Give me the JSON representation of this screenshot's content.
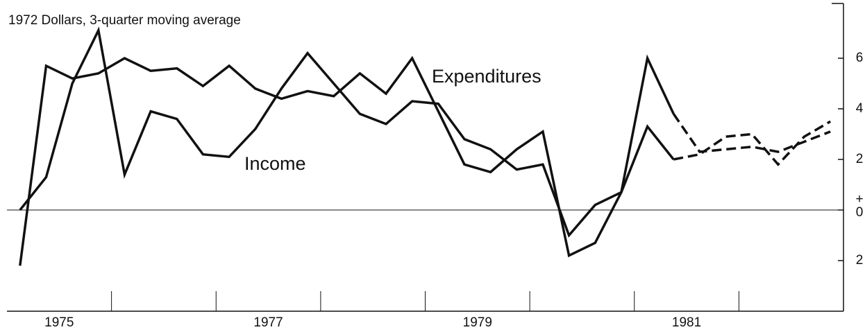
{
  "chart_data": {
    "type": "line",
    "title": "1972 Dollars, 3-quarter moving average",
    "x": [
      1975.125,
      1975.375,
      1975.625,
      1975.875,
      1976.125,
      1976.375,
      1976.625,
      1976.875,
      1977.125,
      1977.375,
      1977.625,
      1977.875,
      1978.125,
      1978.375,
      1978.625,
      1978.875,
      1979.125,
      1979.375,
      1979.625,
      1979.875,
      1980.125,
      1980.375,
      1980.625,
      1980.875,
      1981.125,
      1981.375,
      1981.625,
      1981.875,
      1982.125,
      1982.375,
      1982.625,
      1982.875
    ],
    "series": [
      {
        "name": "Income",
        "color": "#111111",
        "dash_from": 25,
        "values": [
          0,
          1.3,
          5.0,
          7.1,
          1.4,
          3.9,
          3.6,
          2.2,
          2.1,
          3.2,
          4.8,
          6.2,
          5.0,
          3.8,
          3.4,
          4.3,
          4.2,
          2.8,
          2.4,
          1.6,
          1.8,
          -1.0,
          0.2,
          0.7,
          3.3,
          2.0,
          2.2,
          2.9,
          3.0,
          1.8,
          2.9,
          3.5
        ]
      },
      {
        "name": "Expenditures",
        "color": "#111111",
        "dash_from": 25,
        "values": [
          -2.2,
          5.7,
          5.2,
          5.4,
          6.0,
          5.5,
          5.6,
          4.9,
          5.7,
          4.8,
          4.4,
          4.7,
          4.5,
          5.4,
          4.6,
          6.0,
          3.9,
          1.8,
          1.5,
          2.4,
          3.1,
          -1.8,
          -1.3,
          0.7,
          6.0,
          3.8,
          2.3,
          2.4,
          2.5,
          2.3,
          2.7,
          3.1
        ]
      }
    ],
    "xlim": [
      1975,
      1983
    ],
    "xticks": [
      1976,
      1977,
      1978,
      1979,
      1980,
      1981,
      1982
    ],
    "xlabels": [
      {
        "value": 1975.5,
        "label": "1975"
      },
      {
        "value": 1977.5,
        "label": "1977"
      },
      {
        "value": 1979.5,
        "label": "1979"
      },
      {
        "value": 1981.5,
        "label": "1981"
      }
    ],
    "ylim": [
      -4,
      8
    ],
    "yticks": [
      {
        "value": -2,
        "label": "2"
      },
      0,
      2,
      4,
      6
    ],
    "zero_sign": "+"
  }
}
